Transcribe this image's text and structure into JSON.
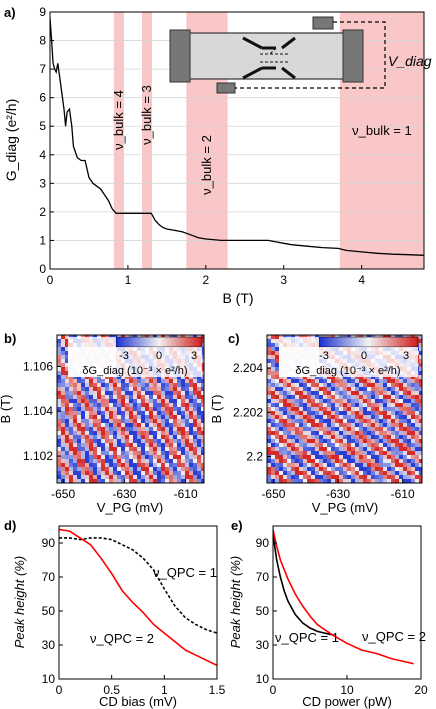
{
  "figure": {
    "panels": [
      {
        "label": "a)",
        "name": "panel-a"
      },
      {
        "label": "b)",
        "name": "panel-b"
      },
      {
        "label": "c)",
        "name": "panel-c"
      },
      {
        "label": "d)",
        "name": "panel-d"
      },
      {
        "label": "e)",
        "name": "panel-e"
      }
    ]
  },
  "chart_data": [
    {
      "id": "a",
      "type": "line",
      "ylabel": "G_diag (e²/h)",
      "xlabel": "B (T)",
      "xlim": [
        0,
        4.8
      ],
      "ylim": [
        0,
        9
      ],
      "xticks": [
        0,
        1,
        2,
        3,
        4
      ],
      "yticks": [
        0,
        1,
        2,
        3,
        4,
        5,
        6,
        7,
        8,
        9
      ],
      "grid": true,
      "bands": [
        {
          "label": "ν_bulk = 4",
          "x0": 0.82,
          "x1": 0.95
        },
        {
          "label": "ν_bulk = 3",
          "x0": 1.18,
          "x1": 1.31
        },
        {
          "label": "ν_bulk = 2",
          "x0": 1.75,
          "x1": 2.28
        },
        {
          "label": "ν_bulk = 1",
          "x0": 3.72,
          "x1": 4.8
        }
      ],
      "inset_label": "V_diag",
      "series": [
        {
          "x": [
            0,
            0.02,
            0.04,
            0.06,
            0.08,
            0.1,
            0.12,
            0.15,
            0.18,
            0.2,
            0.22,
            0.25,
            0.28,
            0.3,
            0.35,
            0.4,
            0.45,
            0.5,
            0.55,
            0.6,
            0.65,
            0.7,
            0.75,
            0.8,
            0.85,
            0.9,
            1.0,
            1.1,
            1.2,
            1.3,
            1.35,
            1.4,
            1.45,
            1.5,
            1.6,
            1.7,
            1.8,
            1.9,
            2.0,
            2.2,
            2.5,
            2.8,
            2.9,
            3.0,
            3.1,
            3.3,
            3.5,
            3.7,
            3.8,
            4.0,
            4.2,
            4.4,
            4.6,
            4.8
          ],
          "y": [
            8.8,
            8.0,
            7.2,
            7.0,
            6.9,
            7.2,
            6.8,
            6.2,
            5.6,
            5.0,
            5.5,
            5.6,
            5.0,
            4.3,
            3.9,
            3.8,
            3.8,
            3.2,
            3.0,
            2.9,
            2.8,
            2.6,
            2.4,
            2.1,
            1.95,
            1.95,
            1.95,
            1.95,
            1.95,
            1.95,
            1.7,
            1.55,
            1.45,
            1.4,
            1.35,
            1.3,
            1.2,
            1.1,
            1.05,
            1.0,
            1.0,
            1.0,
            0.95,
            0.9,
            0.85,
            0.8,
            0.75,
            0.72,
            0.65,
            0.6,
            0.55,
            0.52,
            0.5,
            0.48
          ]
        }
      ]
    },
    {
      "id": "b",
      "type": "heatmap",
      "xlabel": "V_PG (mV)",
      "ylabel": "B (T)",
      "xticks": [
        -650,
        -630,
        -610
      ],
      "yticks": [
        1.102,
        1.104,
        1.106
      ],
      "xlim": [
        -652,
        -604
      ],
      "ylim": [
        1.1008,
        1.1074
      ],
      "colorbar": {
        "label": "δG_diag (10⁻³ × e²/h)",
        "ticks": [
          -3,
          0,
          3
        ]
      }
    },
    {
      "id": "c",
      "type": "heatmap",
      "xlabel": "V_PG (mV)",
      "ylabel": "B (T)",
      "xticks": [
        -650,
        -630,
        -610
      ],
      "yticks": [
        2.2,
        2.202,
        2.204
      ],
      "xlim": [
        -652,
        -604
      ],
      "ylim": [
        2.1988,
        2.2055
      ],
      "colorbar": {
        "label": "δG_diag (10⁻³ × e²/h)",
        "ticks": [
          -3,
          0,
          3
        ]
      }
    },
    {
      "id": "d",
      "type": "line",
      "xlabel": "CD bias (mV)",
      "ylabel": "Peak height (%)",
      "xlim": [
        0,
        1.5
      ],
      "ylim": [
        10,
        100
      ],
      "xticks": [
        0,
        0.5,
        1,
        1.5
      ],
      "yticks": [
        10,
        30,
        50,
        70,
        90
      ],
      "series": [
        {
          "name": "ν_QPC = 1",
          "style": "dashed",
          "color": "#000000",
          "x": [
            0,
            0.1,
            0.2,
            0.3,
            0.4,
            0.5,
            0.6,
            0.7,
            0.8,
            0.9,
            1.0,
            1.1,
            1.2,
            1.3,
            1.4,
            1.5
          ],
          "y": [
            93,
            93,
            92,
            93,
            93,
            92,
            89,
            86,
            81,
            74,
            63,
            53,
            46,
            42,
            39,
            37
          ]
        },
        {
          "name": "ν_QPC = 2",
          "style": "solid",
          "color": "#ff0000",
          "x": [
            0,
            0.1,
            0.2,
            0.3,
            0.4,
            0.5,
            0.6,
            0.7,
            0.8,
            0.9,
            1.0,
            1.1,
            1.2,
            1.3,
            1.4,
            1.5
          ],
          "y": [
            98,
            97,
            93,
            89,
            81,
            72,
            62,
            55,
            49,
            42,
            37,
            32,
            27,
            24,
            21,
            18
          ]
        }
      ]
    },
    {
      "id": "e",
      "type": "line",
      "xlabel": "CD power (pW)",
      "ylabel": "Peak height (%)",
      "xlim": [
        0,
        20
      ],
      "ylim": [
        10,
        100
      ],
      "xticks": [
        0,
        10,
        20
      ],
      "yticks": [
        10,
        30,
        50,
        70,
        90
      ],
      "series": [
        {
          "name": "ν_QPC = 1",
          "style": "solid",
          "color": "#000000",
          "x": [
            0,
            0.5,
            1,
            1.5,
            2,
            3,
            4,
            5,
            6,
            7,
            8
          ],
          "y": [
            95,
            80,
            70,
            62,
            56,
            48,
            43,
            40,
            38,
            37,
            36
          ]
        },
        {
          "name": "ν_QPC = 2",
          "style": "solid",
          "color": "#ff0000",
          "x": [
            0,
            0.5,
            1,
            2,
            3,
            4,
            5,
            6,
            8,
            10,
            12,
            14,
            16,
            18,
            19
          ],
          "y": [
            98,
            88,
            80,
            69,
            60,
            53,
            47,
            42,
            36,
            31,
            27,
            25,
            22,
            20,
            19
          ]
        }
      ]
    }
  ]
}
